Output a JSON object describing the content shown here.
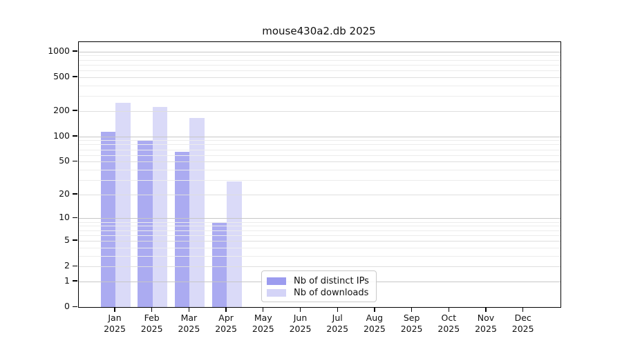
{
  "chart_data": {
    "type": "bar",
    "title": "mouse430a2.db 2025",
    "y_scale": "log10(1+x)",
    "ylim": [
      0,
      1290
    ],
    "yticks": [
      0,
      1,
      2,
      5,
      10,
      20,
      50,
      100,
      200,
      500,
      1000
    ],
    "grid": true,
    "categories": [
      "Jan",
      "Feb",
      "Mar",
      "Apr",
      "May",
      "Jun",
      "Jul",
      "Aug",
      "Sep",
      "Oct",
      "Nov",
      "Dec"
    ],
    "year_label": "2025",
    "series": [
      {
        "name": "Nb of distinct IPs",
        "color": "#9c9cef",
        "values": [
          113,
          89,
          66,
          9,
          null,
          null,
          null,
          null,
          null,
          null,
          null,
          null
        ]
      },
      {
        "name": "Nb of downloads",
        "color": "#d4d4f7",
        "values": [
          250,
          222,
          165,
          29,
          null,
          null,
          null,
          null,
          null,
          null,
          null,
          null
        ]
      }
    ],
    "legend_position": "bottom-center",
    "colors": {
      "spine": "#000000",
      "grid_decade": "#c6c6c6",
      "grid_major": "#dedede",
      "grid_minor": "#ececec"
    }
  }
}
